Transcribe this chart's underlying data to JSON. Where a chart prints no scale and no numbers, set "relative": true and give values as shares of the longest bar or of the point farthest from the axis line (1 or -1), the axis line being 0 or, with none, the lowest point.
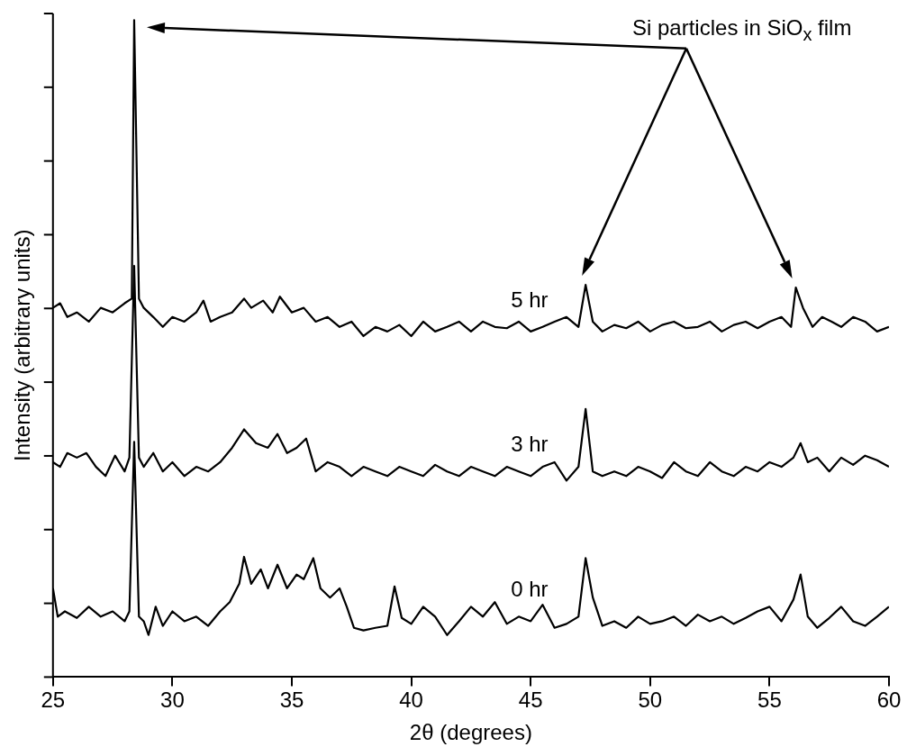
{
  "chart_data": {
    "type": "line",
    "relative": true,
    "xlabel": "2θ (degrees)",
    "ylabel": "Intensity (arbitrary units)",
    "xlim": [
      25,
      60
    ],
    "xticks": [
      25,
      30,
      35,
      40,
      45,
      50,
      55,
      60
    ],
    "grid": false,
    "legend": false,
    "marker": "none",
    "line_style": "solid",
    "annotations": [
      "Si particles in SiO$_{x}$ film"
    ],
    "series": [
      {
        "name": "0 hr",
        "color": "#000000",
        "x": [
          25,
          25.2,
          25.5,
          26,
          26.5,
          27,
          27.5,
          28,
          28.2,
          28.4,
          28.6,
          28.8,
          29,
          29.3,
          29.6,
          30,
          30.5,
          31,
          31.5,
          32,
          32.4,
          32.8,
          33,
          33.3,
          33.7,
          34,
          34.4,
          34.8,
          35.2,
          35.5,
          35.9,
          36.2,
          36.6,
          37,
          37.3,
          37.6,
          38,
          38.5,
          39,
          39.3,
          39.6,
          40,
          40.5,
          41,
          41.5,
          42,
          42.5,
          43,
          43.5,
          44,
          44.5,
          45,
          45.5,
          46,
          46.5,
          47,
          47.3,
          47.6,
          48,
          48.5,
          49,
          49.5,
          50,
          50.5,
          51,
          51.5,
          52,
          52.5,
          53,
          53.5,
          54,
          54.5,
          55,
          55.5,
          56,
          56.3,
          56.6,
          57,
          57.5,
          58,
          58.5,
          59,
          59.5,
          60
        ],
        "values": [
          0.135,
          0.092,
          0.1,
          0.09,
          0.107,
          0.092,
          0.1,
          0.085,
          0.1,
          0.358,
          0.092,
          0.085,
          0.064,
          0.107,
          0.078,
          0.1,
          0.085,
          0.092,
          0.078,
          0.1,
          0.114,
          0.142,
          0.183,
          0.142,
          0.164,
          0.135,
          0.171,
          0.135,
          0.156,
          0.149,
          0.181,
          0.135,
          0.121,
          0.135,
          0.107,
          0.075,
          0.071,
          0.075,
          0.078,
          0.138,
          0.09,
          0.081,
          0.107,
          0.092,
          0.064,
          0.085,
          0.107,
          0.092,
          0.114,
          0.081,
          0.092,
          0.085,
          0.11,
          0.075,
          0.081,
          0.092,
          0.181,
          0.121,
          0.078,
          0.085,
          0.075,
          0.092,
          0.081,
          0.085,
          0.092,
          0.078,
          0.095,
          0.085,
          0.092,
          0.081,
          0.09,
          0.1,
          0.107,
          0.085,
          0.118,
          0.156,
          0.092,
          0.075,
          0.09,
          0.107,
          0.085,
          0.078,
          0.092,
          0.107
        ]
      },
      {
        "name": "3 hr",
        "color": "#000000",
        "x": [
          25,
          25.3,
          25.6,
          26,
          26.4,
          26.8,
          27.2,
          27.6,
          28,
          28.2,
          28.4,
          28.6,
          28.8,
          29.2,
          29.6,
          30,
          30.5,
          31,
          31.5,
          32,
          32.5,
          33,
          33.5,
          34,
          34.4,
          34.8,
          35.2,
          35.6,
          36,
          36.5,
          37,
          37.5,
          38,
          38.5,
          39,
          39.5,
          40,
          40.5,
          41,
          41.5,
          42,
          42.5,
          43,
          43.5,
          44,
          44.5,
          45,
          45.5,
          46,
          46.5,
          47,
          47.3,
          47.6,
          48,
          48.5,
          49,
          49.5,
          50,
          50.5,
          51,
          51.5,
          52,
          52.5,
          53,
          53.5,
          54,
          54.5,
          55,
          55.5,
          56,
          56.3,
          56.6,
          57,
          57.5,
          58,
          58.5,
          59,
          59.5,
          60
        ],
        "values": [
          0.327,
          0.32,
          0.341,
          0.334,
          0.341,
          0.32,
          0.306,
          0.337,
          0.313,
          0.334,
          0.626,
          0.334,
          0.32,
          0.341,
          0.313,
          0.327,
          0.306,
          0.32,
          0.313,
          0.327,
          0.349,
          0.377,
          0.356,
          0.349,
          0.37,
          0.341,
          0.349,
          0.363,
          0.313,
          0.327,
          0.32,
          0.306,
          0.32,
          0.313,
          0.306,
          0.32,
          0.313,
          0.306,
          0.323,
          0.313,
          0.306,
          0.32,
          0.313,
          0.306,
          0.32,
          0.313,
          0.306,
          0.32,
          0.327,
          0.299,
          0.32,
          0.408,
          0.313,
          0.306,
          0.313,
          0.306,
          0.32,
          0.313,
          0.303,
          0.327,
          0.313,
          0.306,
          0.327,
          0.313,
          0.306,
          0.32,
          0.313,
          0.327,
          0.32,
          0.334,
          0.356,
          0.327,
          0.334,
          0.313,
          0.334,
          0.323,
          0.337,
          0.33,
          0.32
        ]
      },
      {
        "name": "5 hr",
        "color": "#000000",
        "x": [
          25,
          25.3,
          25.6,
          26,
          26.5,
          27,
          27.5,
          28,
          28.3,
          28.4,
          28.6,
          28.8,
          29.2,
          29.6,
          30,
          30.5,
          31,
          31.3,
          31.6,
          32,
          32.5,
          33,
          33.3,
          33.8,
          34.2,
          34.5,
          35,
          35.5,
          36,
          36.5,
          37,
          37.5,
          38,
          38.5,
          39,
          39.5,
          40,
          40.5,
          41,
          41.5,
          42,
          42.5,
          43,
          43.5,
          44,
          44.5,
          45,
          45.5,
          46,
          46.5,
          47,
          47.3,
          47.6,
          48,
          48.5,
          49,
          49.5,
          50,
          50.5,
          51,
          51.5,
          52,
          52.5,
          53,
          53.5,
          54,
          54.5,
          55,
          55.5,
          55.9,
          56.1,
          56.4,
          56.8,
          57.2,
          57.6,
          58,
          58.5,
          59,
          59.5,
          60
        ],
        "values": [
          0.562,
          0.569,
          0.548,
          0.555,
          0.541,
          0.562,
          0.555,
          0.569,
          0.576,
          1.0,
          0.576,
          0.562,
          0.548,
          0.533,
          0.548,
          0.541,
          0.555,
          0.573,
          0.541,
          0.548,
          0.555,
          0.576,
          0.562,
          0.573,
          0.555,
          0.579,
          0.555,
          0.562,
          0.541,
          0.548,
          0.533,
          0.541,
          0.519,
          0.533,
          0.526,
          0.536,
          0.519,
          0.541,
          0.526,
          0.533,
          0.541,
          0.526,
          0.541,
          0.533,
          0.531,
          0.541,
          0.526,
          0.533,
          0.541,
          0.548,
          0.533,
          0.597,
          0.541,
          0.526,
          0.536,
          0.531,
          0.541,
          0.526,
          0.536,
          0.541,
          0.531,
          0.533,
          0.541,
          0.526,
          0.536,
          0.541,
          0.531,
          0.541,
          0.548,
          0.533,
          0.593,
          0.562,
          0.533,
          0.548,
          0.541,
          0.533,
          0.548,
          0.541,
          0.526,
          0.533
        ]
      }
    ]
  }
}
